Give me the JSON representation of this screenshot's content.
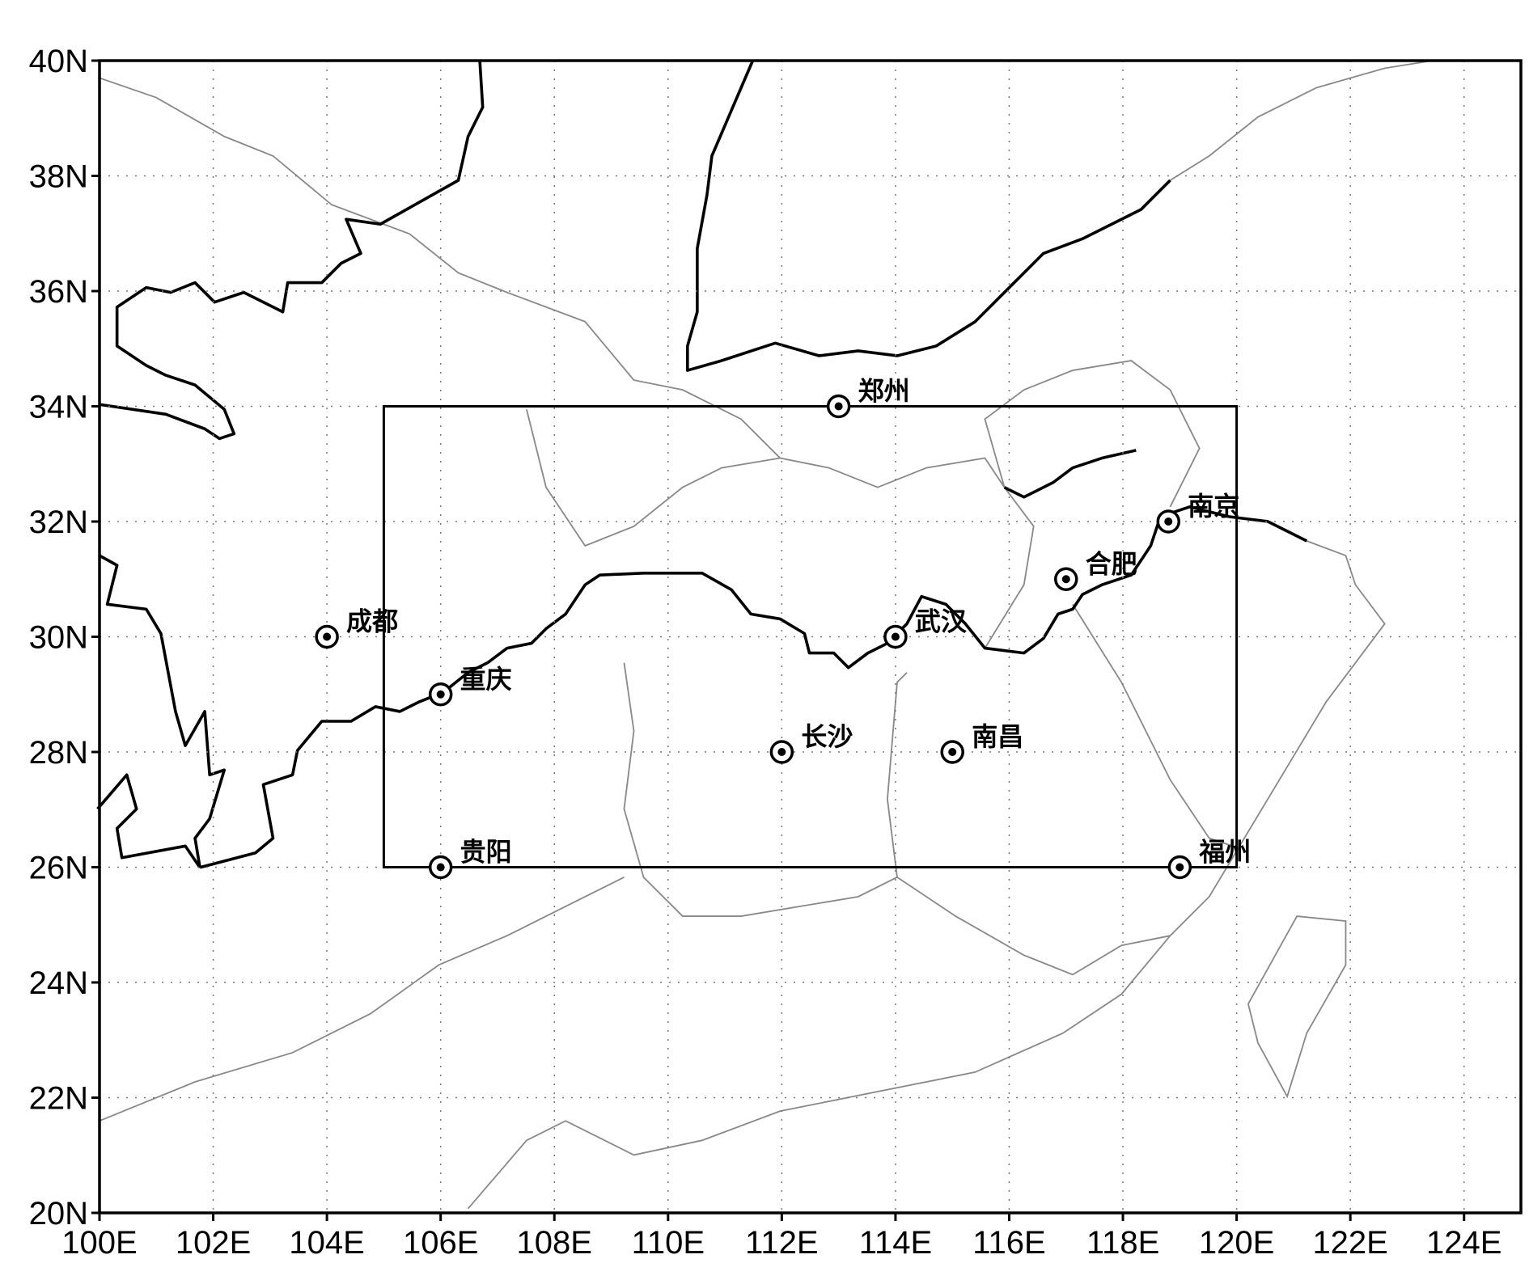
{
  "map": {
    "xlim": [
      100,
      125
    ],
    "ylim": [
      20,
      40
    ],
    "xticks": [
      {
        "value": 100,
        "label": "100E"
      },
      {
        "value": 102,
        "label": "102E"
      },
      {
        "value": 104,
        "label": "104E"
      },
      {
        "value": 106,
        "label": "106E"
      },
      {
        "value": 108,
        "label": "108E"
      },
      {
        "value": 110,
        "label": "110E"
      },
      {
        "value": 112,
        "label": "112E"
      },
      {
        "value": 114,
        "label": "114E"
      },
      {
        "value": 116,
        "label": "116E"
      },
      {
        "value": 118,
        "label": "118E"
      },
      {
        "value": 120,
        "label": "120E"
      },
      {
        "value": 122,
        "label": "122E"
      },
      {
        "value": 124,
        "label": "124E"
      }
    ],
    "yticks": [
      {
        "value": 20,
        "label": "20N"
      },
      {
        "value": 22,
        "label": "22N"
      },
      {
        "value": 24,
        "label": "24N"
      },
      {
        "value": 26,
        "label": "26N"
      },
      {
        "value": 28,
        "label": "28N"
      },
      {
        "value": 30,
        "label": "30N"
      },
      {
        "value": 32,
        "label": "32N"
      },
      {
        "value": 34,
        "label": "34N"
      },
      {
        "value": 36,
        "label": "36N"
      },
      {
        "value": 38,
        "label": "38N"
      },
      {
        "value": 40,
        "label": "40N"
      }
    ],
    "grid": true,
    "box": {
      "west": 105,
      "east": 120,
      "south": 26,
      "north": 34
    },
    "cities": [
      {
        "name": "郑州",
        "lon": 113,
        "lat": 34
      },
      {
        "name": "成都",
        "lon": 104,
        "lat": 30
      },
      {
        "name": "重庆",
        "lon": 106,
        "lat": 29
      },
      {
        "name": "贵阳",
        "lon": 106,
        "lat": 26
      },
      {
        "name": "长沙",
        "lon": 112,
        "lat": 28
      },
      {
        "name": "南昌",
        "lon": 115,
        "lat": 28
      },
      {
        "name": "武汉",
        "lon": 114,
        "lat": 30
      },
      {
        "name": "合肥",
        "lon": 117,
        "lat": 31
      },
      {
        "name": "南京",
        "lon": 118.8,
        "lat": 32
      },
      {
        "name": "福州",
        "lon": 119,
        "lat": 26
      }
    ]
  }
}
